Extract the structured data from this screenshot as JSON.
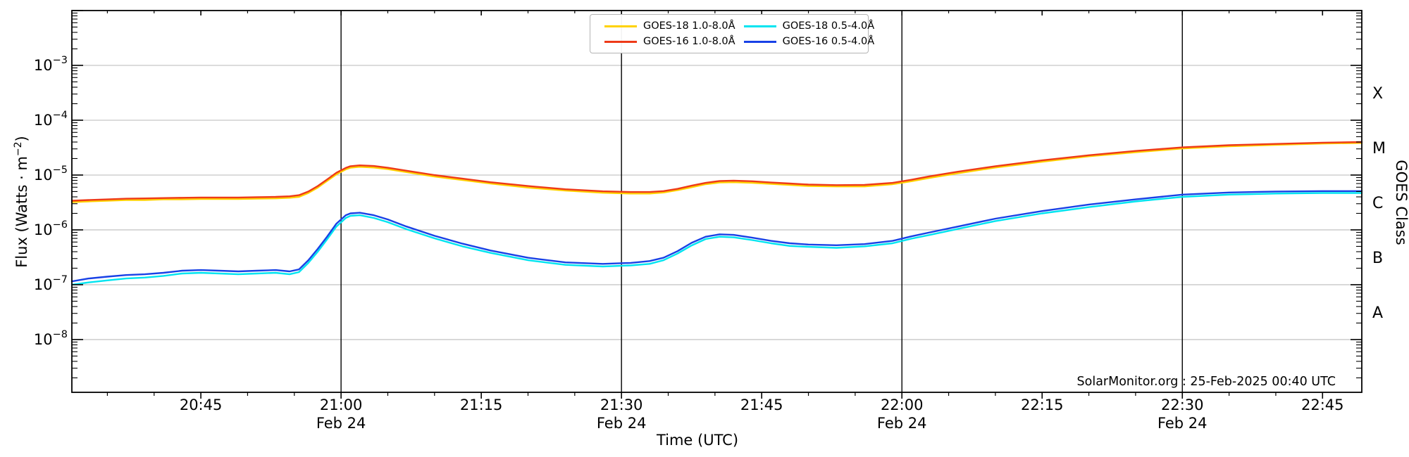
{
  "page": {
    "background": "#ffffff"
  },
  "axis_labels": {
    "x": "Time (UTC)",
    "y_prefix": "Flux (Watts · m",
    "y_sup": "−2",
    "y_suffix": ")",
    "y_right": "GOES Class"
  },
  "watermark": {
    "text": "SolarMonitor.org : 25-Feb-2025 00:40 UTC"
  },
  "legend": {
    "position": "top-center",
    "items": [
      {
        "label": "GOES-18 1.0-8.0Å",
        "color": "#ffd200"
      },
      {
        "label": "GOES-16 1.0-8.0Å",
        "color": "#ee3a18"
      },
      {
        "label": "GOES-18 0.5-4.0Å",
        "color": "#00e4f0"
      },
      {
        "label": "GOES-16 0.5-4.0Å",
        "color": "#1841e6"
      }
    ]
  },
  "chart_data": {
    "type": "line",
    "title": "",
    "xlabel": "Time (UTC)",
    "ylabel": "Flux (Watts · m−2)",
    "ylabel_right": "GOES Class",
    "y_scale": "log",
    "x_unit": "minutes after 20:00 UTC, 2025-02-24",
    "xlim": [
      31.2,
      169.2
    ],
    "ylim": [
      1.09e-09,
      0.01
    ],
    "grid": "horizontal-decades",
    "gridline_color": "#c8c8c8",
    "vline_color": "#000000",
    "vlines": [
      60,
      90,
      120,
      150
    ],
    "x_major_ticks": [
      {
        "t": 45,
        "label": "20:45",
        "sub": ""
      },
      {
        "t": 60,
        "label": "21:00",
        "sub": "Feb 24"
      },
      {
        "t": 75,
        "label": "21:15",
        "sub": ""
      },
      {
        "t": 90,
        "label": "21:30",
        "sub": "Feb 24"
      },
      {
        "t": 105,
        "label": "21:45",
        "sub": ""
      },
      {
        "t": 120,
        "label": "22:00",
        "sub": "Feb 24"
      },
      {
        "t": 135,
        "label": "22:15",
        "sub": ""
      },
      {
        "t": 150,
        "label": "22:30",
        "sub": "Feb 24"
      },
      {
        "t": 165,
        "label": "22:45",
        "sub": ""
      }
    ],
    "x_minor_step": 5,
    "y_ticks": [
      {
        "exp": -3,
        "base": "10",
        "sup": "−3"
      },
      {
        "exp": -4,
        "base": "10",
        "sup": "−4"
      },
      {
        "exp": -5,
        "base": "10",
        "sup": "−5"
      },
      {
        "exp": -6,
        "base": "10",
        "sup": "−6"
      },
      {
        "exp": -7,
        "base": "10",
        "sup": "−7"
      },
      {
        "exp": -8,
        "base": "10",
        "sup": "−8"
      }
    ],
    "y_grid_exponents": [
      -3,
      -4,
      -5,
      -6,
      -7,
      -8
    ],
    "right_classes": [
      {
        "label": "X",
        "exponent": -3.5
      },
      {
        "label": "M",
        "exponent": -4.5
      },
      {
        "label": "C",
        "exponent": -5.5
      },
      {
        "label": "B",
        "exponent": -6.5
      },
      {
        "label": "A",
        "exponent": -7.5
      }
    ],
    "x": [
      31.2,
      33,
      35,
      37,
      39,
      41,
      43,
      45,
      47,
      49,
      51,
      53,
      54.5,
      55.5,
      56.5,
      57.5,
      58.5,
      59.5,
      60.5,
      61,
      62,
      63.5,
      65,
      67,
      70,
      73,
      76,
      80,
      84,
      88,
      91,
      93,
      94.5,
      96,
      97.5,
      99,
      100.5,
      102,
      104,
      106,
      108,
      110,
      113,
      116,
      119,
      121,
      123,
      126,
      130,
      135,
      140,
      145,
      150,
      155,
      160,
      165,
      169.2
    ],
    "series": [
      {
        "name": "GOES-18 1.0-8.0Å",
        "color": "#ffd200",
        "values": [
          3.2e-06,
          3.3e-06,
          3.4e-06,
          3.5e-06,
          3.5e-06,
          3.6e-06,
          3.6e-06,
          3.65e-06,
          3.65e-06,
          3.65e-06,
          3.7e-06,
          3.75e-06,
          3.85e-06,
          4e-06,
          4.7e-06,
          5.9e-06,
          7.8e-06,
          1.03e-05,
          1.27e-05,
          1.36e-05,
          1.41e-05,
          1.37e-05,
          1.28e-05,
          1.13e-05,
          9.4e-06,
          8.1e-06,
          7e-06,
          5.9e-06,
          5.2e-06,
          4.75e-06,
          4.6e-06,
          4.6e-06,
          4.8e-06,
          5.3e-06,
          6e-06,
          6.8e-06,
          7.3e-06,
          7.4e-06,
          7.2e-06,
          6.9e-06,
          6.6e-06,
          6.3e-06,
          6.2e-06,
          6.2e-06,
          6.8e-06,
          7.7e-06,
          8.9e-06,
          1.08e-05,
          1.37e-05,
          1.75e-05,
          2.2e-05,
          2.6e-05,
          3.05e-05,
          3.35e-05,
          3.55e-05,
          3.75e-05,
          3.85e-05
        ]
      },
      {
        "name": "GOES-18 0.5-4.0Å",
        "color": "#00e4f0",
        "values": [
          1e-07,
          1.1e-07,
          1.2e-07,
          1.3e-07,
          1.35e-07,
          1.45e-07,
          1.6e-07,
          1.65e-07,
          1.6e-07,
          1.55e-07,
          1.6e-07,
          1.65e-07,
          1.55e-07,
          1.7e-07,
          2.5e-07,
          4e-07,
          6.7e-07,
          1.15e-06,
          1.65e-06,
          1.8e-06,
          1.85e-06,
          1.65e-06,
          1.38e-06,
          1.03e-06,
          7e-07,
          5e-07,
          3.8e-07,
          2.8e-07,
          2.3e-07,
          2.15e-07,
          2.25e-07,
          2.4e-07,
          2.8e-07,
          3.7e-07,
          5.2e-07,
          6.8e-07,
          7.5e-07,
          7.3e-07,
          6.5e-07,
          5.7e-07,
          5.1e-07,
          4.9e-07,
          4.7e-07,
          5e-07,
          5.7e-07,
          6.9e-07,
          8.1e-07,
          1.04e-06,
          1.45e-06,
          2e-06,
          2.6e-06,
          3.3e-06,
          4e-06,
          4.4e-06,
          4.6e-06,
          4.7e-06,
          4.7e-06
        ]
      },
      {
        "name": "GOES-16 0.5-4.0Å",
        "color": "#1841e6",
        "values": [
          1.15e-07,
          1.3e-07,
          1.4e-07,
          1.5e-07,
          1.55e-07,
          1.65e-07,
          1.8e-07,
          1.85e-07,
          1.8e-07,
          1.75e-07,
          1.8e-07,
          1.85e-07,
          1.75e-07,
          1.9e-07,
          2.8e-07,
          4.5e-07,
          7.5e-07,
          1.3e-06,
          1.85e-06,
          2e-06,
          2.05e-06,
          1.85e-06,
          1.55e-06,
          1.15e-06,
          7.8e-07,
          5.6e-07,
          4.2e-07,
          3.1e-07,
          2.55e-07,
          2.4e-07,
          2.5e-07,
          2.7e-07,
          3.1e-07,
          4.1e-07,
          5.8e-07,
          7.5e-07,
          8.3e-07,
          8.1e-07,
          7.2e-07,
          6.3e-07,
          5.7e-07,
          5.4e-07,
          5.25e-07,
          5.5e-07,
          6.3e-07,
          7.6e-07,
          9e-07,
          1.15e-06,
          1.6e-06,
          2.2e-06,
          2.9e-06,
          3.6e-06,
          4.4e-06,
          4.8e-06,
          5e-06,
          5.1e-06,
          5.1e-06
        ]
      },
      {
        "name": "GOES-16 1.0-8.0Å",
        "color": "#ee3a18",
        "values": [
          3.4e-06,
          3.5e-06,
          3.6e-06,
          3.7e-06,
          3.75e-06,
          3.8e-06,
          3.85e-06,
          3.9e-06,
          3.9e-06,
          3.9e-06,
          3.95e-06,
          4e-06,
          4.1e-06,
          4.3e-06,
          5e-06,
          6.3e-06,
          8.3e-06,
          1.1e-05,
          1.35e-05,
          1.45e-05,
          1.5e-05,
          1.46e-05,
          1.36e-05,
          1.2e-05,
          1e-05,
          8.6e-06,
          7.4e-06,
          6.3e-06,
          5.5e-06,
          5.05e-06,
          4.9e-06,
          4.9e-06,
          5.1e-06,
          5.6e-06,
          6.4e-06,
          7.2e-06,
          7.8e-06,
          7.9e-06,
          7.7e-06,
          7.3e-06,
          7e-06,
          6.7e-06,
          6.55e-06,
          6.6e-06,
          7.2e-06,
          8.2e-06,
          9.5e-06,
          1.15e-05,
          1.45e-05,
          1.85e-05,
          2.3e-05,
          2.75e-05,
          3.2e-05,
          3.5e-05,
          3.7e-05,
          3.9e-05,
          4e-05
        ]
      }
    ]
  }
}
